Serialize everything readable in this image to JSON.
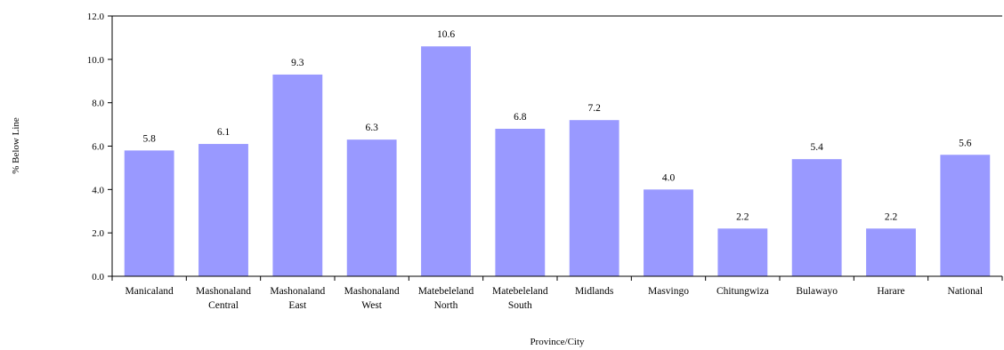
{
  "chart_data": {
    "type": "bar",
    "xlabel": "Province/City",
    "ylabel": "% Below Line",
    "ylim": [
      0,
      12
    ],
    "ytick_step": 2,
    "grid": false,
    "legend": "none",
    "bar_color": "#9999ff",
    "categories": [
      [
        "Manicaland"
      ],
      [
        "Mashonaland",
        "Central"
      ],
      [
        "Mashonaland",
        "East"
      ],
      [
        "Mashonaland",
        "West"
      ],
      [
        "Matebeleland",
        "North"
      ],
      [
        "Matebeleland",
        "South"
      ],
      [
        "Midlands"
      ],
      [
        "Masvingo"
      ],
      [
        "Chitungwiza"
      ],
      [
        "Bulawayo"
      ],
      [
        "Harare"
      ],
      [
        "National"
      ]
    ],
    "values": [
      5.8,
      6.1,
      9.3,
      6.3,
      10.6,
      6.8,
      7.2,
      4.0,
      2.2,
      5.4,
      2.2,
      5.6
    ],
    "value_labels": [
      "5.8",
      "6.1",
      "9.3",
      "6.3",
      "10.6",
      "6.8",
      "7.2",
      "4.0",
      "2.2",
      "5.4",
      "2.2",
      "5.6"
    ],
    "yticks": [
      "0.0",
      "2.0",
      "4.0",
      "6.0",
      "8.0",
      "10.0",
      "12.0"
    ]
  }
}
